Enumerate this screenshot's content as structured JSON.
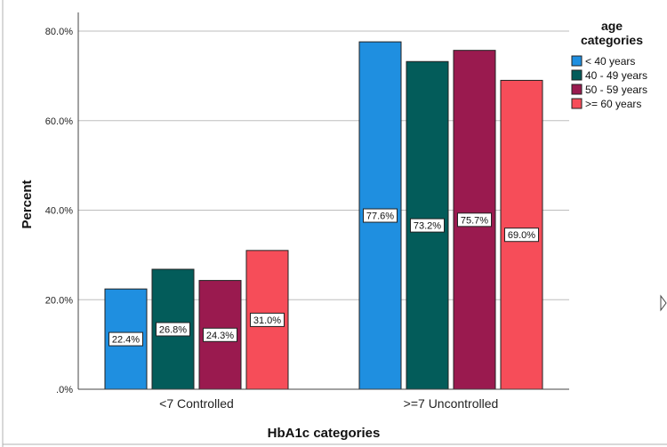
{
  "chart_data": {
    "type": "bar",
    "title": "",
    "xlabel": "HbA1c categories",
    "ylabel": "Percent",
    "ylim": [
      0,
      80
    ],
    "yticks": [
      0,
      20,
      40,
      60,
      80
    ],
    "ytick_labels": [
      ".0%",
      "20.0%",
      "40.0%",
      "60.0%",
      "80.0%"
    ],
    "grid": true,
    "legend_position": "top-right",
    "legend_title_lines": [
      "age",
      "categories"
    ],
    "categories": [
      "<7 Controlled",
      ">=7 Uncontrolled"
    ],
    "series": [
      {
        "name": "< 40 years",
        "color": "#1f8fe0",
        "values": [
          22.4,
          77.6
        ],
        "labels": [
          "22.4%",
          "77.6%"
        ]
      },
      {
        "name": "40 - 49 years",
        "color": "#035c5a",
        "values": [
          26.8,
          73.2
        ],
        "labels": [
          "26.8%",
          "73.2%"
        ]
      },
      {
        "name": "50 - 59 years",
        "color": "#9a1a4f",
        "values": [
          24.3,
          75.7
        ],
        "labels": [
          "24.3%",
          "75.7%"
        ]
      },
      {
        "name": ">= 60 years",
        "color": "#f64d59",
        "values": [
          31.0,
          69.0
        ],
        "labels": [
          "31.0%",
          "69.0%"
        ]
      }
    ]
  }
}
